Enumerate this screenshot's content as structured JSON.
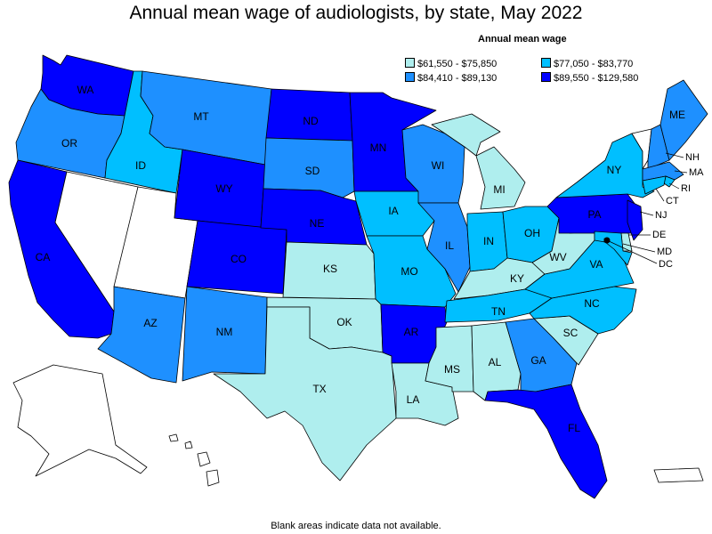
{
  "title": "Annual mean wage of audiologists, by state, May 2022",
  "legend": {
    "title": "Annual mean wage",
    "bins": [
      {
        "label": "$61,550 - $75,850",
        "color": "#afeeee"
      },
      {
        "label": "$77,050 - $83,770",
        "color": "#00bfff"
      },
      {
        "label": "$84,410 - $89,130",
        "color": "#1e90ff"
      },
      {
        "label": "$89,550 - $129,580",
        "color": "#0000ff"
      }
    ]
  },
  "footnote": "Blank areas indicate data not available.",
  "colors": {
    "no_data": "#ffffff",
    "border": "#000000"
  },
  "states": {
    "WA": {
      "label": "WA",
      "bin": 3
    },
    "OR": {
      "label": "OR",
      "bin": 2
    },
    "CA": {
      "label": "CA",
      "bin": 3
    },
    "ID": {
      "label": "ID",
      "bin": 1
    },
    "NV": {
      "label": "",
      "bin": null
    },
    "MT": {
      "label": "MT",
      "bin": 2
    },
    "WY": {
      "label": "WY",
      "bin": 3
    },
    "UT": {
      "label": "",
      "bin": null
    },
    "AZ": {
      "label": "AZ",
      "bin": 2
    },
    "CO": {
      "label": "CO",
      "bin": 3
    },
    "NM": {
      "label": "NM",
      "bin": 2
    },
    "ND": {
      "label": "ND",
      "bin": 3
    },
    "SD": {
      "label": "SD",
      "bin": 2
    },
    "NE": {
      "label": "NE",
      "bin": 3
    },
    "KS": {
      "label": "KS",
      "bin": 0
    },
    "OK": {
      "label": "OK",
      "bin": 0
    },
    "TX": {
      "label": "TX",
      "bin": 0
    },
    "MN": {
      "label": "MN",
      "bin": 3
    },
    "IA": {
      "label": "IA",
      "bin": 1
    },
    "MO": {
      "label": "MO",
      "bin": 1
    },
    "AR": {
      "label": "AR",
      "bin": 3
    },
    "LA": {
      "label": "LA",
      "bin": 0
    },
    "WI": {
      "label": "WI",
      "bin": 2
    },
    "IL": {
      "label": "IL",
      "bin": 2
    },
    "MI": {
      "label": "MI",
      "bin": 0
    },
    "IN": {
      "label": "IN",
      "bin": 1
    },
    "OH": {
      "label": "OH",
      "bin": 1
    },
    "KY": {
      "label": "KY",
      "bin": 0
    },
    "TN": {
      "label": "TN",
      "bin": 1
    },
    "MS": {
      "label": "MS",
      "bin": 0
    },
    "AL": {
      "label": "AL",
      "bin": 0
    },
    "GA": {
      "label": "GA",
      "bin": 2
    },
    "FL": {
      "label": "FL",
      "bin": 3
    },
    "SC": {
      "label": "SC",
      "bin": 0
    },
    "NC": {
      "label": "NC",
      "bin": 1
    },
    "VA": {
      "label": "VA",
      "bin": 1
    },
    "WV": {
      "label": "WV",
      "bin": 0
    },
    "PA": {
      "label": "PA",
      "bin": 3
    },
    "NY": {
      "label": "NY",
      "bin": 1
    },
    "VT": {
      "label": "",
      "bin": null
    },
    "NH": {
      "label": "NH",
      "bin": 2
    },
    "ME": {
      "label": "ME",
      "bin": 2
    },
    "MA": {
      "label": "MA",
      "bin": 2
    },
    "RI": {
      "label": "RI",
      "bin": 1
    },
    "CT": {
      "label": "CT",
      "bin": 1
    },
    "NJ": {
      "label": "NJ",
      "bin": 3
    },
    "DE": {
      "label": "DE",
      "bin": 0
    },
    "MD": {
      "label": "MD",
      "bin": 1
    },
    "DC": {
      "label": "DC",
      "bin": 3
    },
    "AK": {
      "label": "",
      "bin": null
    },
    "HI": {
      "label": "",
      "bin": null
    },
    "PR": {
      "label": "",
      "bin": null
    }
  }
}
